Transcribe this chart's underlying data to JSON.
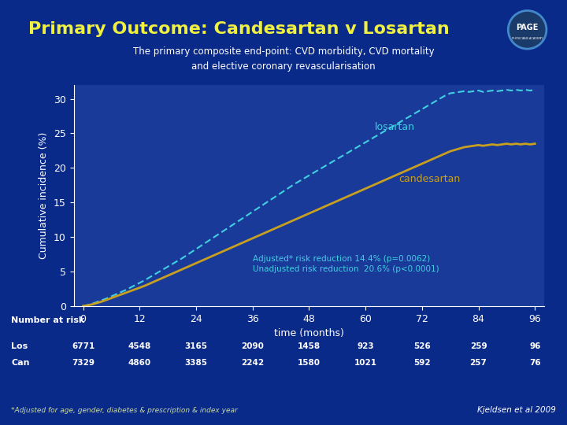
{
  "title": "Primary Outcome: Candesartan v Losartan",
  "subtitle_line1": "The primary composite end-point: CVD morbidity, CVD mortality",
  "subtitle_line2": "and elective coronary revascularisation",
  "ylabel": "Cumulative incidence (%)",
  "xlabel": "time (months)",
  "xticks": [
    0,
    12,
    24,
    36,
    48,
    60,
    72,
    84,
    96
  ],
  "yticks": [
    0,
    5,
    10,
    15,
    20,
    25,
    30
  ],
  "ylim": [
    0,
    32
  ],
  "xlim": [
    -2,
    98
  ],
  "bg_color": "#0a2a8a",
  "plot_bg": "#1a3a9a",
  "losartan_color": "#40d0e0",
  "candesartan_color": "#c8a020",
  "losartan_x": [
    0,
    1,
    2,
    3,
    4,
    5,
    6,
    7,
    8,
    9,
    10,
    11,
    12,
    13,
    14,
    15,
    16,
    17,
    18,
    19,
    20,
    21,
    22,
    23,
    24,
    25,
    26,
    27,
    28,
    29,
    30,
    31,
    32,
    33,
    34,
    35,
    36,
    37,
    38,
    39,
    40,
    41,
    42,
    43,
    44,
    45,
    46,
    47,
    48,
    49,
    50,
    51,
    52,
    53,
    54,
    55,
    56,
    57,
    58,
    59,
    60,
    61,
    62,
    63,
    64,
    65,
    66,
    67,
    68,
    69,
    70,
    71,
    72,
    73,
    74,
    75,
    76,
    77,
    78,
    79,
    80,
    81,
    82,
    83,
    84,
    85,
    86,
    87,
    88,
    89,
    90,
    91,
    92,
    93,
    94,
    95,
    96
  ],
  "losartan_y": [
    0,
    0.15,
    0.35,
    0.6,
    0.85,
    1.1,
    1.4,
    1.7,
    2.0,
    2.3,
    2.65,
    3.0,
    3.35,
    3.7,
    4.1,
    4.5,
    4.9,
    5.3,
    5.7,
    6.1,
    6.5,
    6.9,
    7.35,
    7.8,
    8.25,
    8.7,
    9.15,
    9.6,
    10.05,
    10.5,
    10.95,
    11.4,
    11.85,
    12.3,
    12.75,
    13.2,
    13.65,
    14.1,
    14.55,
    15.0,
    15.45,
    15.9,
    16.35,
    16.8,
    17.25,
    17.7,
    18.1,
    18.5,
    18.9,
    19.3,
    19.7,
    20.1,
    20.5,
    20.9,
    21.3,
    21.7,
    22.1,
    22.5,
    22.9,
    23.3,
    23.7,
    24.1,
    24.5,
    24.9,
    25.3,
    25.7,
    26.1,
    26.5,
    26.9,
    27.3,
    27.7,
    28.1,
    28.5,
    28.9,
    29.3,
    29.7,
    30.1,
    30.5,
    30.8,
    30.9,
    31.0,
    31.1,
    31.0,
    31.1,
    31.2,
    31.0,
    31.1,
    31.2,
    31.1,
    31.2,
    31.3,
    31.2,
    31.3,
    31.2,
    31.3,
    31.2,
    31.3
  ],
  "candesartan_x": [
    0,
    1,
    2,
    3,
    4,
    5,
    6,
    7,
    8,
    9,
    10,
    11,
    12,
    13,
    14,
    15,
    16,
    17,
    18,
    19,
    20,
    21,
    22,
    23,
    24,
    25,
    26,
    27,
    28,
    29,
    30,
    31,
    32,
    33,
    34,
    35,
    36,
    37,
    38,
    39,
    40,
    41,
    42,
    43,
    44,
    45,
    46,
    47,
    48,
    49,
    50,
    51,
    52,
    53,
    54,
    55,
    56,
    57,
    58,
    59,
    60,
    61,
    62,
    63,
    64,
    65,
    66,
    67,
    68,
    69,
    70,
    71,
    72,
    73,
    74,
    75,
    76,
    77,
    78,
    79,
    80,
    81,
    82,
    83,
    84,
    85,
    86,
    87,
    88,
    89,
    90,
    91,
    92,
    93,
    94,
    95,
    96
  ],
  "candesartan_y": [
    0,
    0.1,
    0.25,
    0.45,
    0.65,
    0.9,
    1.15,
    1.4,
    1.65,
    1.9,
    2.15,
    2.4,
    2.65,
    2.9,
    3.2,
    3.5,
    3.8,
    4.1,
    4.4,
    4.7,
    5.0,
    5.3,
    5.6,
    5.9,
    6.2,
    6.5,
    6.8,
    7.1,
    7.4,
    7.7,
    8.0,
    8.3,
    8.6,
    8.9,
    9.2,
    9.5,
    9.8,
    10.1,
    10.4,
    10.7,
    11.0,
    11.3,
    11.6,
    11.9,
    12.2,
    12.5,
    12.8,
    13.1,
    13.4,
    13.7,
    14.0,
    14.3,
    14.6,
    14.9,
    15.2,
    15.5,
    15.8,
    16.1,
    16.4,
    16.7,
    17.0,
    17.3,
    17.6,
    17.9,
    18.2,
    18.5,
    18.8,
    19.1,
    19.4,
    19.7,
    20.0,
    20.3,
    20.6,
    20.9,
    21.2,
    21.5,
    21.8,
    22.1,
    22.4,
    22.6,
    22.8,
    23.0,
    23.1,
    23.2,
    23.3,
    23.2,
    23.3,
    23.4,
    23.3,
    23.4,
    23.5,
    23.4,
    23.5,
    23.4,
    23.5,
    23.4,
    23.5
  ],
  "annotation1": "Adjusted* risk reduction 14.4% (p=0.0062)",
  "annotation2": "Unadjusted risk reduction  20.6% (p<0.0001)",
  "losartan_label": "losartan",
  "candesartan_label": "candesartan",
  "number_at_risk_label": "Number at risk",
  "los_label": "Los",
  "can_label": "Can",
  "los_values": [
    "6771",
    "4548",
    "3165",
    "2090",
    "1458",
    "923",
    "526",
    "259",
    "96"
  ],
  "can_values": [
    "7329",
    "4860",
    "3385",
    "2242",
    "1580",
    "1021",
    "592",
    "257",
    "76"
  ],
  "footnote": "*Adjusted for age, gender, diabetes & prescription & index year",
  "citation": "Kjeldsen et al 2009",
  "title_color": "#f0f040",
  "subtitle_color": "#ffffff",
  "axis_color": "#ffffff",
  "annotation_color": "#40d0e0",
  "label_color": "#ffffff"
}
